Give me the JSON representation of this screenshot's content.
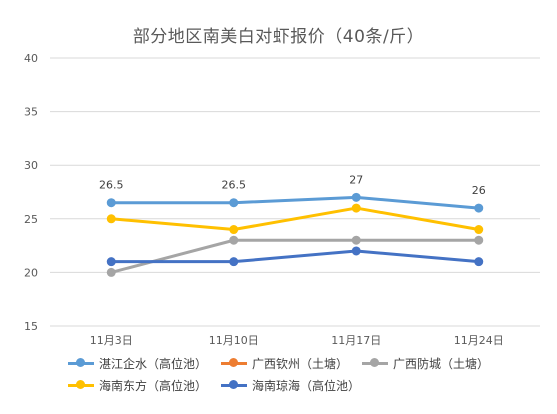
{
  "chart_data": {
    "type": "line",
    "title": "部分地区南美白对虾报价（40条/斤）",
    "categories": [
      "11月3日",
      "11月10日",
      "11月17日",
      "11月24日"
    ],
    "ylim": [
      15,
      40
    ],
    "yticks": [
      "15",
      "20",
      "25",
      "30",
      "35",
      "40"
    ],
    "grid": true,
    "legend_position": "bottom",
    "series": [
      {
        "name": "湛江企水（高位池）",
        "color": "#5B9BD5",
        "values": [
          26.5,
          26.5,
          27,
          26
        ],
        "labels": [
          "26.5",
          "26.5",
          "27",
          "26"
        ]
      },
      {
        "name": "广西钦州（土塘）",
        "color": "#ED7D31",
        "values": [
          null,
          null,
          null,
          null
        ]
      },
      {
        "name": "广西防城（土塘）",
        "color": "#A5A5A5",
        "values": [
          20,
          23,
          23,
          23
        ]
      },
      {
        "name": "海南东方（高位池）",
        "color": "#FFC000",
        "values": [
          25,
          24,
          26,
          24
        ]
      },
      {
        "name": "海南琼海（高位池）",
        "color": "#4472C4",
        "values": [
          21,
          21,
          22,
          21
        ]
      }
    ]
  }
}
